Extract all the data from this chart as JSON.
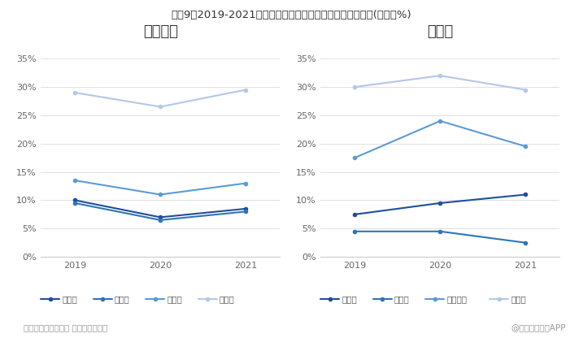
{
  "title": "图表9：2019-2021年鼎胜新材、东阳光铝箔产品毛利率对比(单位：%)",
  "years": [
    2019,
    2020,
    2021
  ],
  "left_title": "鼎胜新材",
  "right_title": "东阳光",
  "left_series": {
    "空调箔": [
      10.0,
      7.0,
      8.5
    ],
    "单零箔": [
      9.5,
      6.5,
      8.0
    ],
    "双零箔": [
      13.5,
      11.0,
      13.0
    ],
    "电池箔": [
      29.0,
      26.5,
      29.5
    ]
  },
  "right_series": {
    "空调箔": [
      7.5,
      9.5,
      11.0
    ],
    "钎焊箔": [
      4.5,
      4.5,
      2.5
    ],
    "电子光箔": [
      17.5,
      24.0,
      19.5
    ],
    "电极箔": [
      30.0,
      32.0,
      29.5
    ]
  },
  "left_colors": [
    "#1f4e9b",
    "#2e75b6",
    "#5b9bd5",
    "#b4c7e7"
  ],
  "right_colors": [
    "#1f4e9b",
    "#2e75b6",
    "#5b9bd5",
    "#b4c7e7"
  ],
  "ylim": [
    0,
    37
  ],
  "yticks": [
    0,
    5,
    10,
    15,
    20,
    25,
    30,
    35
  ],
  "background_color": "#ffffff",
  "footer_left": "资料来源：公司公告 前瞻产业研究院",
  "footer_right": "@前瞻经济学人APP"
}
